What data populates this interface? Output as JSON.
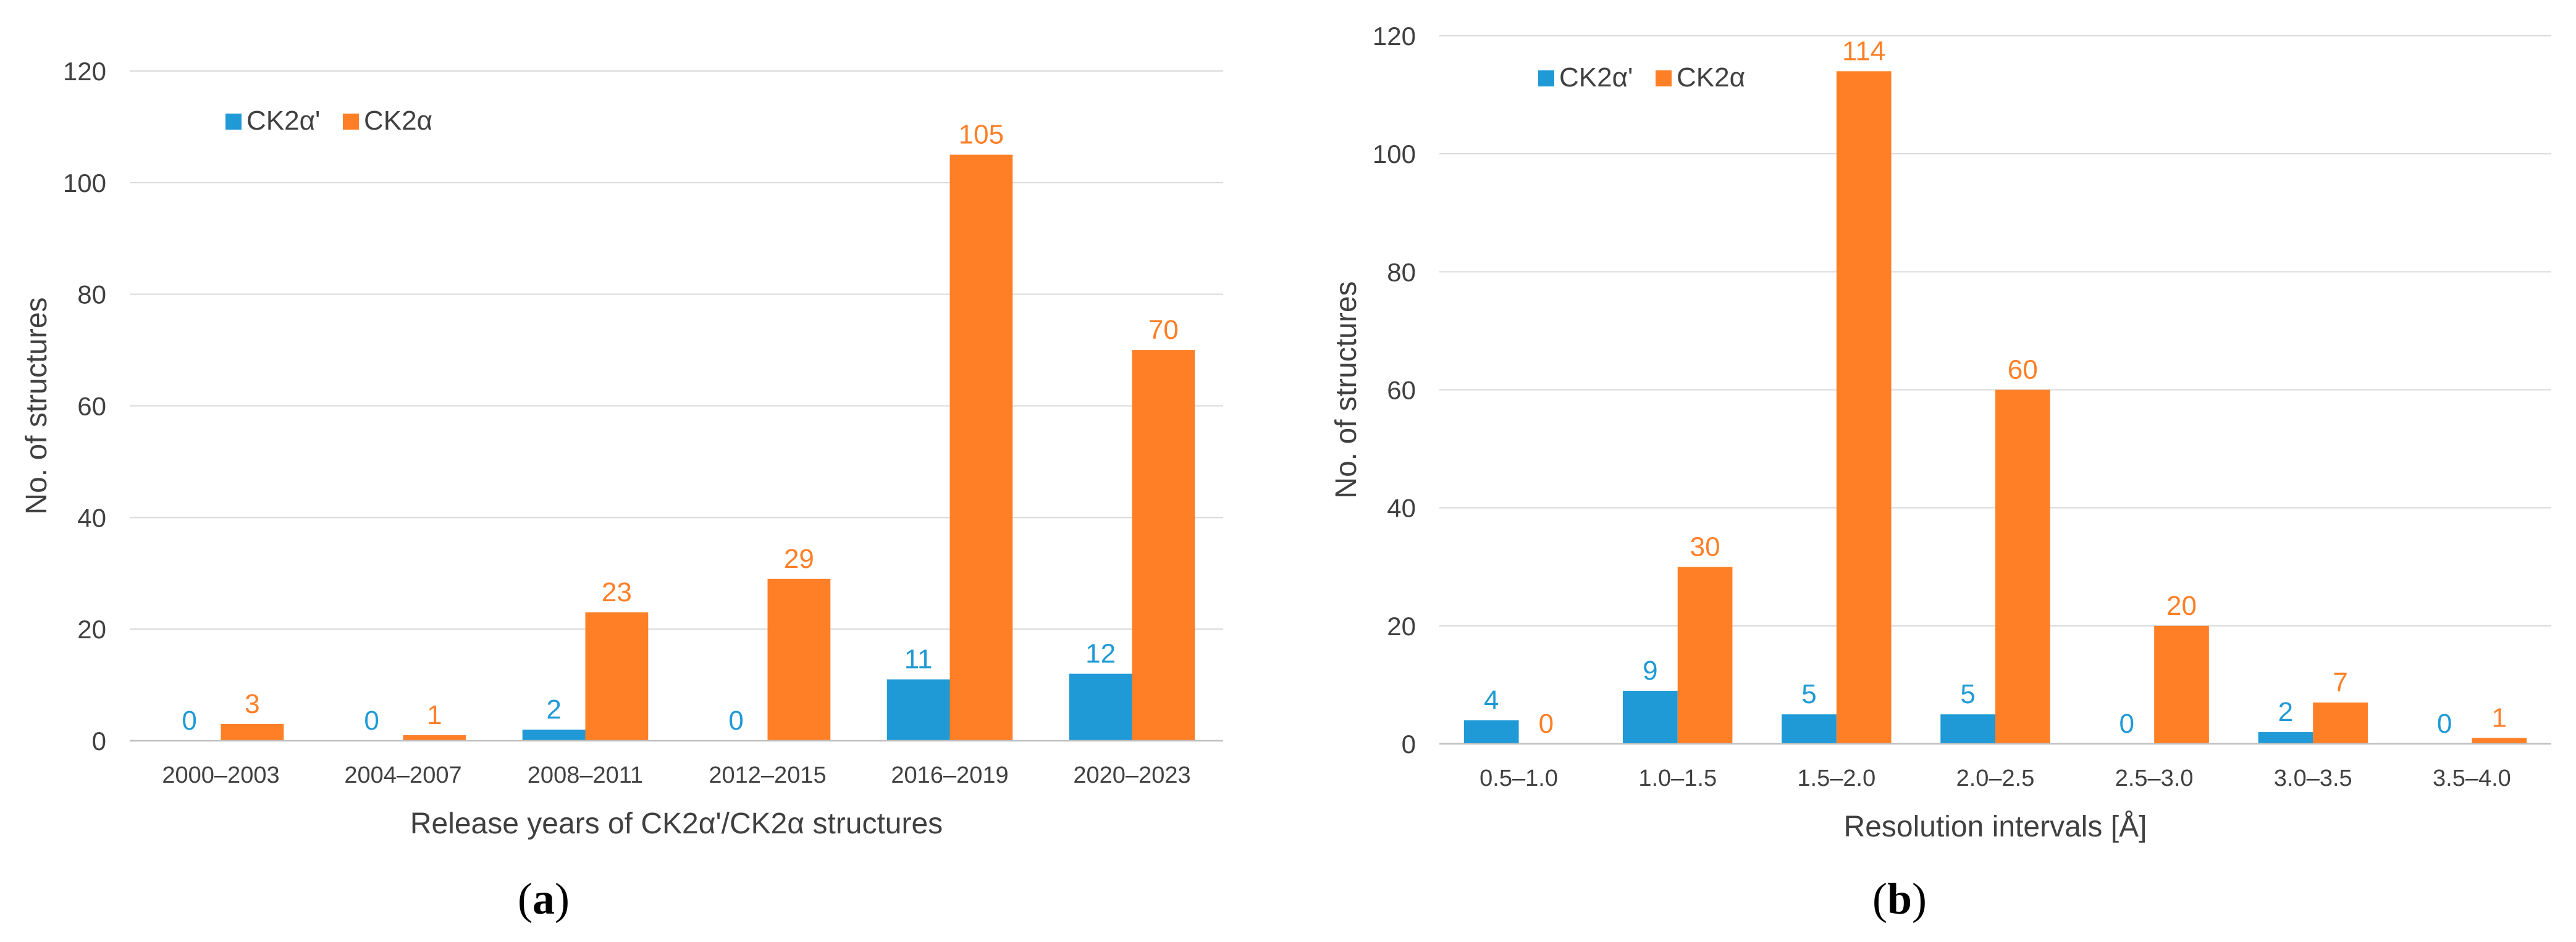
{
  "colors": {
    "ck2a_prime": "#1f9ad6",
    "ck2a": "#ff7f27",
    "grid": "#d9d9d9",
    "text": "#404040"
  },
  "chart_data": [
    {
      "type": "bar",
      "panel_label": "(a)",
      "panel_letter": "a",
      "title": "",
      "xlabel": "Release years of CK2α'/CK2α structures",
      "ylabel": "No. of structures",
      "ylim": [
        0,
        120
      ],
      "yticks": [
        0,
        20,
        40,
        60,
        80,
        100,
        120
      ],
      "grid": true,
      "legend_position": "top-left",
      "categories": [
        "2000–2003",
        "2004–2007",
        "2008–2011",
        "2012–2015",
        "2016–2019",
        "2020–2023"
      ],
      "series": [
        {
          "name": "CK2α'",
          "color": "#1f9ad6",
          "values": [
            0,
            0,
            2,
            0,
            11,
            12
          ]
        },
        {
          "name": "CK2α",
          "color": "#ff7f27",
          "values": [
            3,
            1,
            23,
            29,
            105,
            70
          ]
        }
      ]
    },
    {
      "type": "bar",
      "panel_label": "(b)",
      "panel_letter": "b",
      "title": "",
      "xlabel": "Resolution intervals [Å]",
      "ylabel": "No. of structures",
      "ylim": [
        0,
        120
      ],
      "yticks": [
        0,
        20,
        40,
        60,
        80,
        100,
        120
      ],
      "grid": true,
      "legend_position": "top-left",
      "categories": [
        "0.5–1.0",
        "1.0–1.5",
        "1.5–2.0",
        "2.0–2.5",
        "2.5–3.0",
        "3.0–3.5",
        "3.5–4.0"
      ],
      "series": [
        {
          "name": "CK2α'",
          "color": "#1f9ad6",
          "values": [
            4,
            9,
            5,
            5,
            0,
            2,
            0
          ]
        },
        {
          "name": "CK2α",
          "color": "#ff7f27",
          "values": [
            0,
            30,
            114,
            60,
            20,
            7,
            1
          ]
        }
      ]
    }
  ]
}
